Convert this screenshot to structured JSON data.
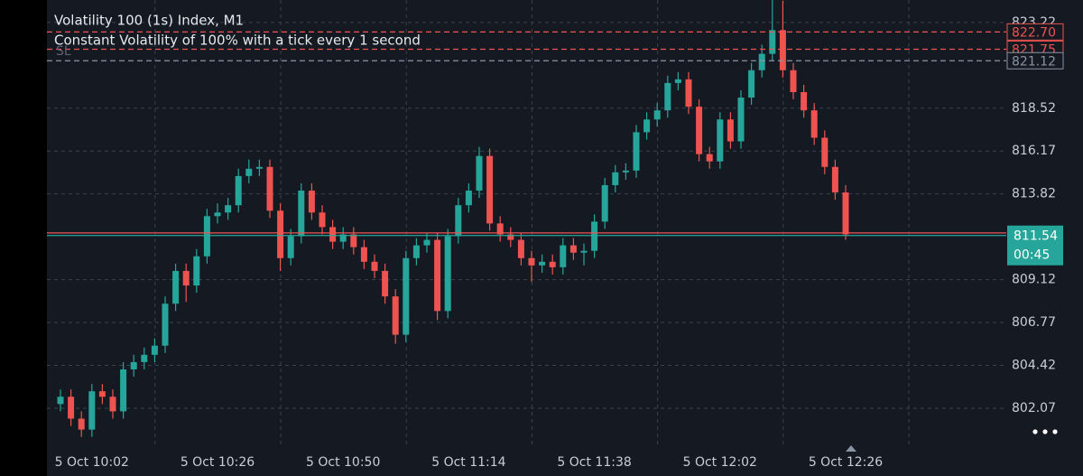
{
  "chart_data": {
    "type": "candlestick",
    "title": "Volatility 100 (1s) Index, M1",
    "subtitle": "Constant Volatility of 100% with a tick every 1 second",
    "sl_label": "SL",
    "countdown": "00:45",
    "up_color": "#26a69a",
    "down_color": "#ef5350",
    "grid": true,
    "ylim": [
      799.94,
      824.45
    ],
    "yticks": [
      802.07,
      804.42,
      806.77,
      809.12,
      813.82,
      816.17,
      818.52,
      823.22
    ],
    "categories": [
      null,
      null,
      null,
      "5 Oct 10:02",
      null,
      null,
      null,
      null,
      null,
      null,
      null,
      null,
      null,
      null,
      null,
      "5 Oct 10:26",
      null,
      null,
      null,
      null,
      null,
      null,
      null,
      null,
      null,
      null,
      null,
      "5 Oct 10:50",
      null,
      null,
      null,
      null,
      null,
      null,
      null,
      null,
      null,
      null,
      null,
      "5 Oct 11:14",
      null,
      null,
      null,
      null,
      null,
      null,
      null,
      null,
      null,
      null,
      null,
      "5 Oct 11:38",
      null,
      null,
      null,
      null,
      null,
      null,
      null,
      null,
      null,
      null,
      null,
      "5 Oct 12:02",
      null,
      null,
      null,
      null,
      null,
      null,
      null,
      null,
      null,
      null,
      null,
      "5 Oct 12:26"
    ],
    "open": [
      802.3,
      802.7,
      801.5,
      800.9,
      803.0,
      802.7,
      801.9,
      804.2,
      804.6,
      805.0,
      805.5,
      807.8,
      809.6,
      808.8,
      810.4,
      812.6,
      812.8,
      813.2,
      814.8,
      815.2,
      815.3,
      812.9,
      810.3,
      811.5,
      814.0,
      812.8,
      812.0,
      811.2,
      811.6,
      810.9,
      810.1,
      809.6,
      808.2,
      806.1,
      810.3,
      811.0,
      811.3,
      807.4,
      811.5,
      813.2,
      814.0,
      815.9,
      812.2,
      811.6,
      811.3,
      810.3,
      809.9,
      810.1,
      809.8,
      811.0,
      810.6,
      810.7,
      812.3,
      814.3,
      815.0,
      815.1,
      817.2,
      817.9,
      818.4,
      819.9,
      820.1,
      818.6,
      816.0,
      815.6,
      817.9,
      816.7,
      819.1,
      820.6,
      821.5,
      822.8,
      820.6,
      819.4,
      818.4,
      816.9,
      815.3,
      813.9
    ],
    "high": [
      803.1,
      803.1,
      801.9,
      803.4,
      803.4,
      803.1,
      804.6,
      805.0,
      805.4,
      805.9,
      808.2,
      810.0,
      810.0,
      810.8,
      813.0,
      813.3,
      813.6,
      815.2,
      815.7,
      815.7,
      815.7,
      813.3,
      811.9,
      814.4,
      814.4,
      813.2,
      812.4,
      812.0,
      812.0,
      811.3,
      810.5,
      810.0,
      808.6,
      810.7,
      811.4,
      811.7,
      811.7,
      811.9,
      813.6,
      814.4,
      816.4,
      816.3,
      812.6,
      812.0,
      811.7,
      810.7,
      810.5,
      810.5,
      811.4,
      811.4,
      811.1,
      812.7,
      814.7,
      815.4,
      815.5,
      817.6,
      818.3,
      818.8,
      820.3,
      820.5,
      820.5,
      819.0,
      816.4,
      818.3,
      818.3,
      819.5,
      821.0,
      822.0,
      824.5,
      824.4,
      821.0,
      819.8,
      818.8,
      817.3,
      815.7,
      814.3
    ],
    "low": [
      801.9,
      801.1,
      800.5,
      800.5,
      802.3,
      801.5,
      801.5,
      803.8,
      804.2,
      804.6,
      805.1,
      807.4,
      807.9,
      808.4,
      810.0,
      812.2,
      812.4,
      812.8,
      814.4,
      814.8,
      812.5,
      809.6,
      809.9,
      811.1,
      812.4,
      811.6,
      810.8,
      810.8,
      810.5,
      809.7,
      809.2,
      807.8,
      805.6,
      805.7,
      809.9,
      810.6,
      806.9,
      807.0,
      811.1,
      812.8,
      813.6,
      811.8,
      811.2,
      810.9,
      809.9,
      809.0,
      809.5,
      809.4,
      809.4,
      810.2,
      809.9,
      810.3,
      811.9,
      813.9,
      814.6,
      814.7,
      816.8,
      817.5,
      818.0,
      819.5,
      818.2,
      815.6,
      815.2,
      815.2,
      816.3,
      816.3,
      818.7,
      820.2,
      821.1,
      820.2,
      819.0,
      818.0,
      816.5,
      814.9,
      813.5,
      811.3
    ],
    "close": [
      802.7,
      801.5,
      800.9,
      803.0,
      802.7,
      801.9,
      804.2,
      804.6,
      805.0,
      805.5,
      807.8,
      809.6,
      808.8,
      810.4,
      812.6,
      812.8,
      813.2,
      814.8,
      815.2,
      815.3,
      812.9,
      810.3,
      811.5,
      814.0,
      812.8,
      812.0,
      811.2,
      811.6,
      810.9,
      810.1,
      809.6,
      808.2,
      806.1,
      810.3,
      811.0,
      811.3,
      807.4,
      811.5,
      813.2,
      814.0,
      815.9,
      812.2,
      811.6,
      811.3,
      810.3,
      809.9,
      810.1,
      809.8,
      811.0,
      810.6,
      810.7,
      812.3,
      814.3,
      815.0,
      815.1,
      817.2,
      817.9,
      818.4,
      819.9,
      820.1,
      818.6,
      816.0,
      815.6,
      817.9,
      816.7,
      819.1,
      820.6,
      821.5,
      822.8,
      820.6,
      819.4,
      818.4,
      816.9,
      815.3,
      813.9,
      811.6
    ],
    "price_lines": [
      {
        "value": 822.7,
        "label": "822.70",
        "color": "#ef5350",
        "style": "dashed",
        "box": "outline"
      },
      {
        "value": 821.75,
        "label": "821.75",
        "color": "#ef5350",
        "style": "dashed",
        "box": "outline"
      },
      {
        "value": 821.12,
        "color": "#8a94a6",
        "style": "dashed",
        "box": "outline"
      },
      {
        "value": 811.68,
        "color": "#ef5350",
        "style": "solid"
      },
      {
        "value": 811.54,
        "color": "#26a69a",
        "style": "solid",
        "box": "fill"
      }
    ]
  }
}
